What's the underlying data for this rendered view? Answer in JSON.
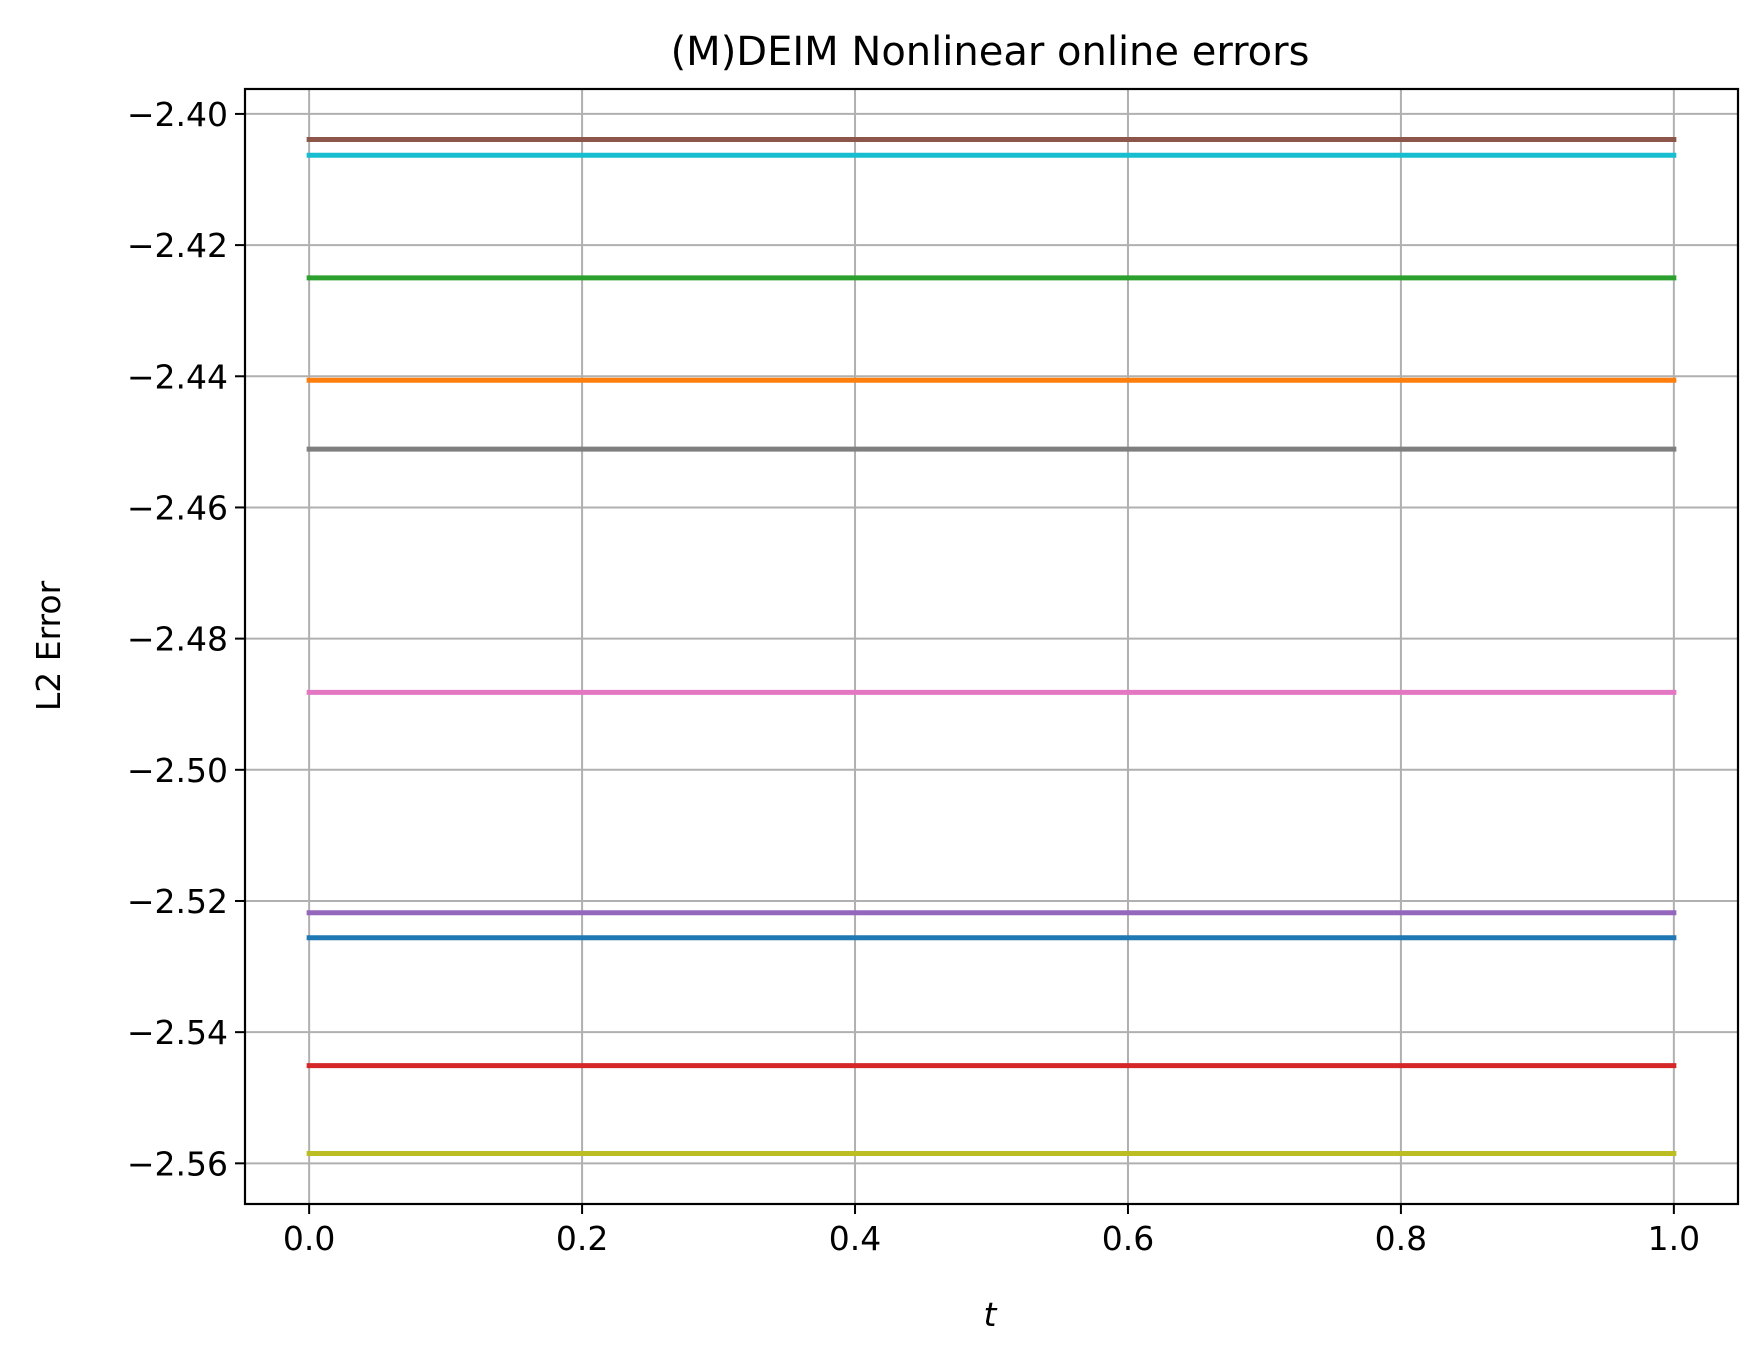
{
  "chart_data": {
    "type": "line",
    "title": "(M)DEIM Nonlinear online errors",
    "xlabel": "t",
    "ylabel": "L2 Error",
    "xlim": [
      -0.047,
      1.047
    ],
    "ylim": [
      -2.5662,
      -2.3962
    ],
    "xticks": [
      0.0,
      0.2,
      0.4,
      0.6,
      0.8,
      1.0
    ],
    "xtick_labels": [
      "0.0",
      "0.2",
      "0.4",
      "0.6",
      "0.8",
      "1.0"
    ],
    "yticks": [
      -2.4,
      -2.42,
      -2.44,
      -2.46,
      -2.48,
      -2.5,
      -2.52,
      -2.54,
      -2.56
    ],
    "ytick_labels": [
      "−2.40",
      "−2.42",
      "−2.44",
      "−2.46",
      "−2.48",
      "−2.50",
      "−2.52",
      "−2.54",
      "−2.56"
    ],
    "grid": true,
    "x": [
      0.0,
      1.0
    ],
    "series": [
      {
        "color": "#1f77b4",
        "values": [
          -2.5256,
          -2.5256
        ]
      },
      {
        "color": "#ff7f0e",
        "values": [
          -2.4406,
          -2.4406
        ]
      },
      {
        "color": "#2ca02c",
        "values": [
          -2.425,
          -2.425
        ]
      },
      {
        "color": "#d62728",
        "values": [
          -2.5451,
          -2.5451
        ]
      },
      {
        "color": "#9467bd",
        "values": [
          -2.5218,
          -2.5218
        ]
      },
      {
        "color": "#8c564b",
        "values": [
          -2.4039,
          -2.4039
        ]
      },
      {
        "color": "#e377c2",
        "values": [
          -2.4882,
          -2.4882
        ]
      },
      {
        "color": "#7f7f7f",
        "values": [
          -2.4511,
          -2.4511
        ]
      },
      {
        "color": "#bcbd22",
        "values": [
          -2.5585,
          -2.5585
        ]
      },
      {
        "color": "#17becf",
        "values": [
          -2.4063,
          -2.4063
        ]
      }
    ]
  }
}
